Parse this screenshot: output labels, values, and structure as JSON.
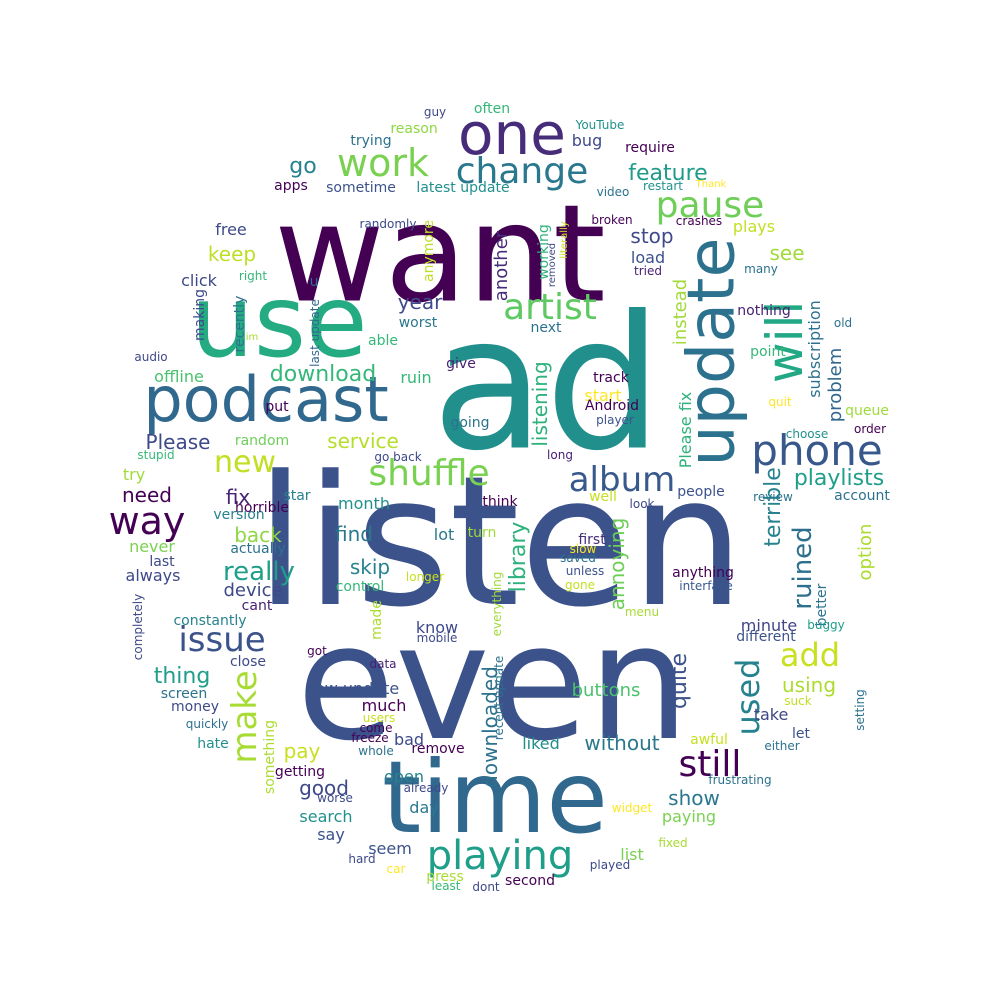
{
  "words": [
    {
      "text": "listen",
      "color": "#3b528b"
    },
    {
      "text": "even",
      "color": "#3b528b"
    },
    {
      "text": "ad",
      "color": "#21908d"
    },
    {
      "text": "want",
      "color": "#440154"
    },
    {
      "text": "time",
      "color": "#31688e"
    },
    {
      "text": "use",
      "color": "#25ab82"
    },
    {
      "text": "podcast",
      "color": "#31688e"
    },
    {
      "text": "update",
      "color": "#2c728e"
    },
    {
      "text": "one",
      "color": "#472c7a"
    },
    {
      "text": "will",
      "color": "#22a884"
    },
    {
      "text": "playing",
      "color": "#1f9e89"
    },
    {
      "text": "phone",
      "color": "#38588c"
    },
    {
      "text": "shuffle",
      "color": "#7ad151"
    },
    {
      "text": "work",
      "color": "#7ad151"
    },
    {
      "text": "change",
      "color": "#2a788e"
    },
    {
      "text": "artist",
      "color": "#5ec962"
    },
    {
      "text": "pause",
      "color": "#6ece58"
    },
    {
      "text": "album",
      "color": "#38598c"
    },
    {
      "text": "way",
      "color": "#440154"
    },
    {
      "text": "issue",
      "color": "#3b528b"
    },
    {
      "text": "new",
      "color": "#c2df23"
    },
    {
      "text": "make",
      "color": "#a8db34"
    },
    {
      "text": "still",
      "color": "#440154"
    },
    {
      "text": "used",
      "color": "#26828e"
    },
    {
      "text": "add",
      "color": "#c8e020"
    },
    {
      "text": "really",
      "color": "#1f9e89"
    },
    {
      "text": "ruined",
      "color": "#2d708e"
    },
    {
      "text": "playlists",
      "color": "#1f9e89"
    },
    {
      "text": "download",
      "color": "#35b779"
    },
    {
      "text": "library",
      "color": "#2db27d"
    },
    {
      "text": "feature",
      "color": "#1e9b8a"
    },
    {
      "text": "go",
      "color": "#26828e"
    },
    {
      "text": "stop",
      "color": "#3e4a89"
    },
    {
      "text": "listening",
      "color": "#2db27d"
    },
    {
      "text": "Please",
      "color": "#3e4989"
    },
    {
      "text": "service",
      "color": "#b5de2b"
    },
    {
      "text": "fix",
      "color": "#482475"
    },
    {
      "text": "keep",
      "color": "#bddf26"
    },
    {
      "text": "terrible",
      "color": "#26828e"
    },
    {
      "text": "problem",
      "color": "#31688e"
    },
    {
      "text": "subscription",
      "color": "#2c728e"
    },
    {
      "text": "annoying",
      "color": "#6ece58"
    },
    {
      "text": "downloaded",
      "color": "#2c728e"
    },
    {
      "text": "quite",
      "color": "#3b528b"
    },
    {
      "text": "thing",
      "color": "#1f9e89"
    },
    {
      "text": "need",
      "color": "#440154"
    },
    {
      "text": "find",
      "color": "#2a788e"
    },
    {
      "text": "skip",
      "color": "#26828e"
    },
    {
      "text": "back",
      "color": "#8fd744"
    },
    {
      "text": "see",
      "color": "#a0da39"
    },
    {
      "text": "year",
      "color": "#3e4a89"
    },
    {
      "text": "instead",
      "color": "#a0da39"
    },
    {
      "text": "another",
      "color": "#472c7a"
    },
    {
      "text": "Please fix",
      "color": "#2db27d"
    },
    {
      "text": "option",
      "color": "#addc30"
    },
    {
      "text": "better",
      "color": "#2c728e"
    },
    {
      "text": "buttons",
      "color": "#4ac16d"
    },
    {
      "text": "without",
      "color": "#2a788e"
    },
    {
      "text": "show",
      "color": "#2a788e"
    },
    {
      "text": "good",
      "color": "#3e4989"
    },
    {
      "text": "using",
      "color": "#addc30"
    },
    {
      "text": "new update",
      "color": "#3b528b"
    },
    {
      "text": "pay",
      "color": "#c8e020"
    },
    {
      "text": "device",
      "color": "#3e4989"
    },
    {
      "text": "minute",
      "color": "#414487"
    },
    {
      "text": "click",
      "color": "#3e4989"
    },
    {
      "text": "free",
      "color": "#3e4989"
    },
    {
      "text": "offline",
      "color": "#4ac16d"
    },
    {
      "text": "month",
      "color": "#21908d"
    },
    {
      "text": "load",
      "color": "#3b528b"
    },
    {
      "text": "plays",
      "color": "#c2df23"
    },
    {
      "text": "much",
      "color": "#440154"
    },
    {
      "text": "search",
      "color": "#21908d"
    },
    {
      "text": "liked",
      "color": "#228c8d"
    },
    {
      "text": "anymore",
      "color": "#bddf26"
    },
    {
      "text": "sometime",
      "color": "#3b528b"
    },
    {
      "text": "random",
      "color": "#6ece58"
    },
    {
      "text": "reason",
      "color": "#8fd744"
    },
    {
      "text": "bug",
      "color": "#3e4989"
    },
    {
      "text": "try",
      "color": "#a0da39"
    },
    {
      "text": "never",
      "color": "#7ad151"
    },
    {
      "text": "always",
      "color": "#3e4989"
    },
    {
      "text": "open",
      "color": "#26828e"
    },
    {
      "text": "lot",
      "color": "#2a788e"
    },
    {
      "text": "know",
      "color": "#3e4989"
    },
    {
      "text": "take",
      "color": "#404688"
    },
    {
      "text": "paying",
      "color": "#7ad151"
    },
    {
      "text": "something",
      "color": "#addc30"
    },
    {
      "text": "say",
      "color": "#3b528b"
    },
    {
      "text": "day",
      "color": "#2a788e"
    },
    {
      "text": "seem",
      "color": "#3b528b"
    },
    {
      "text": "list",
      "color": "#7ad151"
    },
    {
      "text": "bad",
      "color": "#3e4989"
    },
    {
      "text": "remove",
      "color": "#440154"
    },
    {
      "text": "ruin",
      "color": "#35b779"
    },
    {
      "text": "going",
      "color": "#2c728e"
    },
    {
      "text": "start",
      "color": "#fde725"
    },
    {
      "text": "Android",
      "color": "#440154"
    },
    {
      "text": "track",
      "color": "#440154"
    },
    {
      "text": "give",
      "color": "#482173"
    },
    {
      "text": "put",
      "color": "#440154"
    },
    {
      "text": "made",
      "color": "#addc30"
    },
    {
      "text": "everything",
      "color": "#a0da39"
    },
    {
      "text": "control",
      "color": "#35b779"
    },
    {
      "text": "constantly",
      "color": "#26828e"
    },
    {
      "text": "working",
      "color": "#2db27d"
    },
    {
      "text": "first",
      "color": "#472c7a"
    },
    {
      "text": "anything",
      "color": "#440154"
    },
    {
      "text": "interface",
      "color": "#38588c"
    },
    {
      "text": "people",
      "color": "#3b528b"
    },
    {
      "text": "account",
      "color": "#2c728e"
    },
    {
      "text": "queue",
      "color": "#9fda3a"
    },
    {
      "text": "point",
      "color": "#35b779"
    },
    {
      "text": "nothing",
      "color": "#482173"
    },
    {
      "text": "many",
      "color": "#2d708e"
    },
    {
      "text": "hate",
      "color": "#21908d"
    },
    {
      "text": "money",
      "color": "#3e4989"
    },
    {
      "text": "screen",
      "color": "#2c728e"
    },
    {
      "text": "close",
      "color": "#3e4a89"
    },
    {
      "text": "getting",
      "color": "#440154"
    },
    {
      "text": "awful",
      "color": "#c8e020"
    },
    {
      "text": "let",
      "color": "#3b528b"
    },
    {
      "text": "think",
      "color": "#440154"
    },
    {
      "text": "worst",
      "color": "#2a788e"
    },
    {
      "text": "able",
      "color": "#35b779"
    },
    {
      "text": "next",
      "color": "#2c728e"
    },
    {
      "text": "actually",
      "color": "#2c728e"
    },
    {
      "text": "version",
      "color": "#26828e"
    },
    {
      "text": "horrible",
      "color": "#440154"
    },
    {
      "text": "star",
      "color": "#26828e"
    },
    {
      "text": "last",
      "color": "#3e4989"
    },
    {
      "text": "cant",
      "color": "#482173"
    },
    {
      "text": "long",
      "color": "#482173"
    },
    {
      "text": "well",
      "color": "#c8e020"
    },
    {
      "text": "look",
      "color": "#3e4989"
    },
    {
      "text": "review",
      "color": "#2c728e"
    },
    {
      "text": "different",
      "color": "#3b528b"
    },
    {
      "text": "buggy",
      "color": "#1f9e89"
    },
    {
      "text": "menu",
      "color": "#a8db34"
    },
    {
      "text": "saved",
      "color": "#2c728e"
    },
    {
      "text": "unless",
      "color": "#3b528b"
    },
    {
      "text": "gone",
      "color": "#c2df23"
    },
    {
      "text": "slow",
      "color": "#fde725"
    },
    {
      "text": "turn",
      "color": "#a0da39"
    },
    {
      "text": "longer",
      "color": "#c8e020"
    },
    {
      "text": "trying",
      "color": "#2c728e"
    },
    {
      "text": "apps",
      "color": "#440154"
    },
    {
      "text": "latest update",
      "color": "#21908d"
    },
    {
      "text": "restart",
      "color": "#21908d"
    },
    {
      "text": "require",
      "color": "#440154"
    },
    {
      "text": "video",
      "color": "#2c728e"
    },
    {
      "text": "Thank",
      "color": "#fde725"
    },
    {
      "text": "YouTube",
      "color": "#21908d"
    },
    {
      "text": "often",
      "color": "#35b779"
    },
    {
      "text": "guy",
      "color": "#3e4989"
    },
    {
      "text": "broken",
      "color": "#440154"
    },
    {
      "text": "crashes",
      "color": "#440154"
    },
    {
      "text": "randomly",
      "color": "#3e4989"
    },
    {
      "text": "tried",
      "color": "#482173"
    },
    {
      "text": "removed",
      "color": "#3e4989"
    },
    {
      "text": "literally",
      "color": "#c8e020"
    },
    {
      "text": "right",
      "color": "#35b779"
    },
    {
      "text": "u",
      "color": "#2c728e"
    },
    {
      "text": "making",
      "color": "#3e4989"
    },
    {
      "text": "recently",
      "color": "#2c728e"
    },
    {
      "text": "last update",
      "color": "#31688e"
    },
    {
      "text": "im",
      "color": "#a8db34"
    },
    {
      "text": "audio",
      "color": "#3e4989"
    },
    {
      "text": "quit",
      "color": "#fde725"
    },
    {
      "text": "player",
      "color": "#3b528b"
    },
    {
      "text": "choose",
      "color": "#21908d"
    },
    {
      "text": "order",
      "color": "#440154"
    },
    {
      "text": "old",
      "color": "#2c728e"
    },
    {
      "text": "stupid",
      "color": "#35b779"
    },
    {
      "text": "go back",
      "color": "#3e4989"
    },
    {
      "text": "completely",
      "color": "#3e4989"
    },
    {
      "text": "got",
      "color": "#440154"
    },
    {
      "text": "mobile",
      "color": "#3e4989"
    },
    {
      "text": "data",
      "color": "#482173"
    },
    {
      "text": "users",
      "color": "#c8e020"
    },
    {
      "text": "come",
      "color": "#440154"
    },
    {
      "text": "freeze",
      "color": "#440154"
    },
    {
      "text": "whole",
      "color": "#2c728e"
    },
    {
      "text": "recent update",
      "color": "#2c728e"
    },
    {
      "text": "quickly",
      "color": "#2c728e"
    },
    {
      "text": "worse",
      "color": "#3e4989"
    },
    {
      "text": "already",
      "color": "#3e4989"
    },
    {
      "text": "hard",
      "color": "#3e4989"
    },
    {
      "text": "car",
      "color": "#fde725"
    },
    {
      "text": "press",
      "color": "#a8db34"
    },
    {
      "text": "least",
      "color": "#35b779"
    },
    {
      "text": "dont",
      "color": "#3e4989"
    },
    {
      "text": "second",
      "color": "#440154"
    },
    {
      "text": "played",
      "color": "#3e4989"
    },
    {
      "text": "fixed",
      "color": "#a8db34"
    },
    {
      "text": "widget",
      "color": "#fde725"
    },
    {
      "text": "frustrating",
      "color": "#2c728e"
    },
    {
      "text": "either",
      "color": "#2c728e"
    },
    {
      "text": "suck",
      "color": "#c2df23"
    },
    {
      "text": "setting",
      "color": "#2c728e"
    }
  ]
}
